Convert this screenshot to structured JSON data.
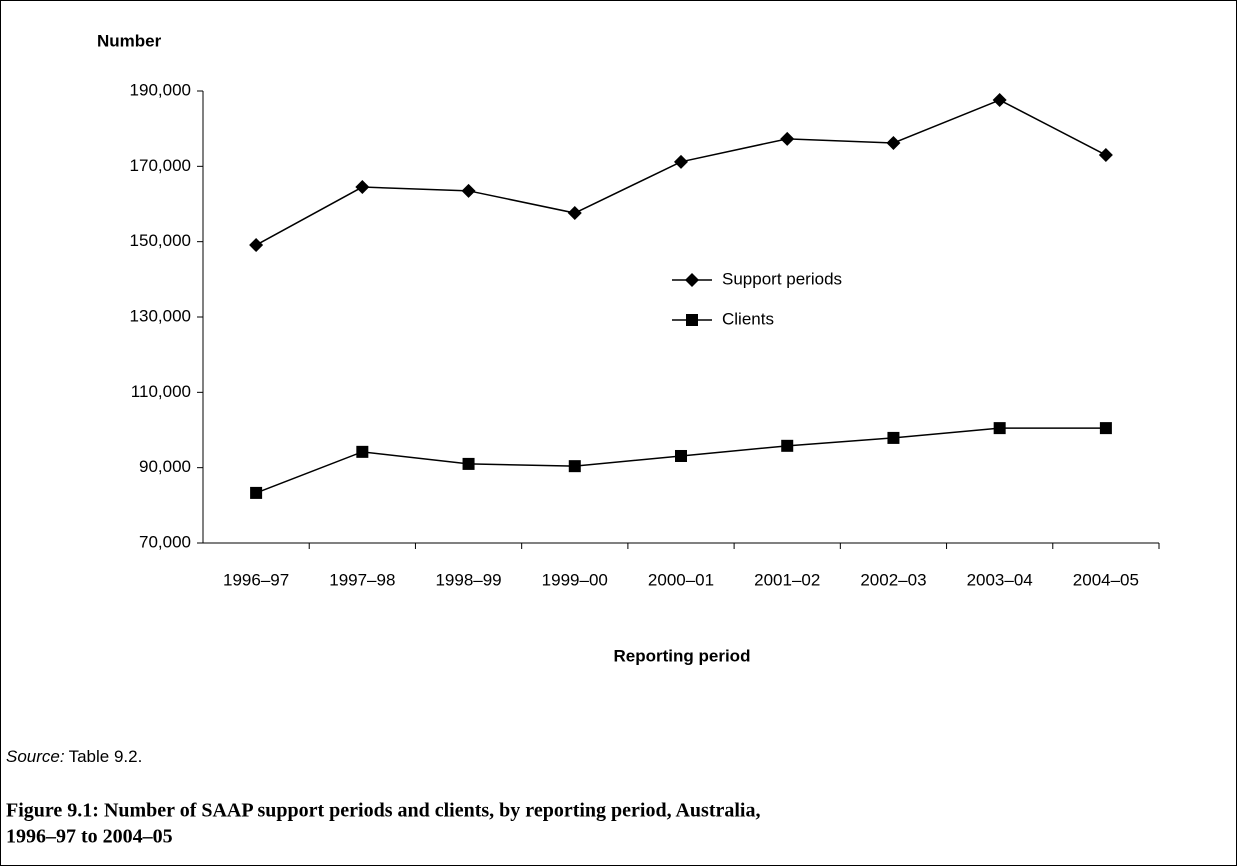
{
  "chart_data": {
    "type": "line",
    "y_axis_title": "Number",
    "x_axis_title": "Reporting period",
    "categories": [
      "1996–97",
      "1997–98",
      "1998–99",
      "1999–00",
      "2000–01",
      "2001–02",
      "2002–03",
      "2003–04",
      "2004–05"
    ],
    "series": [
      {
        "name": "Support periods",
        "color": "#000000",
        "marker": "diamond",
        "values": [
          149100,
          164500,
          163500,
          157600,
          171200,
          177300,
          176200,
          187600,
          173000
        ]
      },
      {
        "name": "Clients",
        "color": "#000000",
        "marker": "square",
        "values": [
          83300,
          94200,
          91000,
          90400,
          93100,
          95800,
          97900,
          100500,
          100500
        ]
      }
    ],
    "ylim": [
      70000,
      190000
    ],
    "yticks": [
      {
        "value": 70000,
        "label": "70,000"
      },
      {
        "value": 90000,
        "label": "90,000"
      },
      {
        "value": 110000,
        "label": "110,000"
      },
      {
        "value": 130000,
        "label": "130,000"
      },
      {
        "value": 150000,
        "label": "150,000"
      },
      {
        "value": 170000,
        "label": "170,000"
      },
      {
        "value": 190000,
        "label": "190,000"
      }
    ],
    "grid": false,
    "legend_position": "center"
  },
  "source": {
    "label": "Source:",
    "text": "Table 9.2."
  },
  "caption": [
    "Figure 9.1: Number of SAAP support periods and clients, by reporting period, Australia,",
    "1996–97 to 2004–05"
  ]
}
